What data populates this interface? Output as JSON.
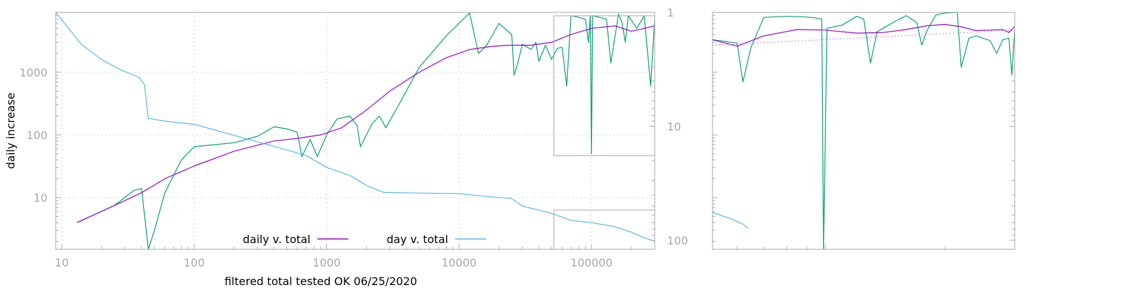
{
  "chart_data": [
    {
      "type": "line",
      "xlabel": "filtered total tested OK 06/25/2020",
      "ylabel": "daily increase",
      "x_scale": "log",
      "y_scale": "log",
      "y2_scale": "log",
      "y2_reversed": true,
      "xlim": [
        9,
        300000
      ],
      "ylim": [
        1.5,
        9000
      ],
      "y2lim": [
        1,
        120
      ],
      "grid": true,
      "legend_position": "bottom-center",
      "x_ticks": [
        "10",
        "100",
        "1000",
        "10000",
        "100000"
      ],
      "y_ticks": [
        "10",
        "100",
        "1000"
      ],
      "y2_ticks": [
        "1",
        "10",
        "100"
      ],
      "series": [
        {
          "name": "daily v. total",
          "axis": "y",
          "color": "#9400d3",
          "points": [
            [
              13,
              4
            ],
            [
              25,
              7.5
            ],
            [
              40,
              12
            ],
            [
              60,
              20
            ],
            [
              100,
              32
            ],
            [
              200,
              55
            ],
            [
              400,
              80
            ],
            [
              600,
              88
            ],
            [
              900,
              100
            ],
            [
              1300,
              130
            ],
            [
              2000,
              250
            ],
            [
              3000,
              500
            ],
            [
              5000,
              1000
            ],
            [
              8000,
              1700
            ],
            [
              12000,
              2300
            ],
            [
              18000,
              2600
            ],
            [
              25000,
              2700
            ],
            [
              35000,
              2700
            ],
            [
              50000,
              3000
            ],
            [
              70000,
              4000
            ],
            [
              100000,
              5000
            ],
            [
              150000,
              5500
            ],
            [
              200000,
              4500
            ],
            [
              250000,
              5000
            ],
            [
              300000,
              5500
            ]
          ]
        },
        {
          "name": "day v. total",
          "axis": "y2",
          "color": "#56b4e9",
          "points": [
            [
              9,
              1
            ],
            [
              14,
              1.9
            ],
            [
              20,
              2.6
            ],
            [
              28,
              3.2
            ],
            [
              38,
              3.7
            ],
            [
              42,
              4.3
            ],
            [
              45,
              8.5
            ],
            [
              60,
              9
            ],
            [
              100,
              9.6
            ],
            [
              200,
              12
            ],
            [
              400,
              15
            ],
            [
              700,
              18
            ],
            [
              1000,
              23
            ],
            [
              1500,
              27
            ],
            [
              2000,
              33
            ],
            [
              2700,
              38
            ],
            [
              5000,
              38.5
            ],
            [
              10000,
              39
            ],
            [
              15000,
              41
            ],
            [
              25000,
              43
            ],
            [
              30000,
              50
            ],
            [
              50000,
              58
            ],
            [
              70000,
              67
            ],
            [
              100000,
              70
            ],
            [
              150000,
              76
            ],
            [
              200000,
              85
            ],
            [
              250000,
              95
            ],
            [
              300000,
              102
            ]
          ]
        },
        {
          "name": "",
          "axis": "y",
          "color": "#009e73",
          "points": [
            [
              13,
              4
            ],
            [
              25,
              7.5
            ],
            [
              35,
              13
            ],
            [
              40,
              14
            ],
            [
              45,
              1.5
            ],
            [
              50,
              3
            ],
            [
              60,
              12
            ],
            [
              80,
              40
            ],
            [
              100,
              65
            ],
            [
              200,
              75
            ],
            [
              300,
              95
            ],
            [
              400,
              135
            ],
            [
              500,
              125
            ],
            [
              600,
              110
            ],
            [
              650,
              45
            ],
            [
              750,
              85
            ],
            [
              850,
              45
            ],
            [
              1000,
              100
            ],
            [
              1200,
              180
            ],
            [
              1500,
              200
            ],
            [
              1700,
              140
            ],
            [
              1800,
              65
            ],
            [
              2200,
              150
            ],
            [
              2500,
              200
            ],
            [
              2800,
              130
            ],
            [
              3500,
              300
            ],
            [
              5000,
              1200
            ],
            [
              8000,
              3800
            ],
            [
              12000,
              8800
            ],
            [
              14000,
              2000
            ],
            [
              16000,
              2600
            ],
            [
              20000,
              6000
            ],
            [
              25000,
              4000
            ],
            [
              26000,
              900
            ],
            [
              28000,
              1500
            ],
            [
              30000,
              2800
            ],
            [
              35000,
              2300
            ],
            [
              38000,
              3000
            ],
            [
              40000,
              1500
            ],
            [
              45000,
              2700
            ],
            [
              50000,
              1600
            ],
            [
              55000,
              2400
            ],
            [
              60000,
              2500
            ],
            [
              65000,
              600
            ],
            [
              70000,
              8000
            ],
            [
              80000,
              7500
            ],
            [
              90000,
              7000
            ],
            [
              95000,
              3000
            ],
            [
              98000,
              8000
            ],
            [
              100000,
              50
            ],
            [
              102000,
              8000
            ],
            [
              130000,
              7000
            ],
            [
              140000,
              1400
            ],
            [
              160000,
              8500
            ],
            [
              170000,
              6200
            ],
            [
              180000,
              3000
            ],
            [
              190000,
              8000
            ],
            [
              220000,
              5000
            ],
            [
              250000,
              8000
            ],
            [
              280000,
              600
            ],
            [
              300000,
              7000
            ]
          ]
        }
      ]
    },
    {
      "type": "line",
      "title": "",
      "x_scale": "log",
      "y_scale": "log",
      "y2_scale": "log",
      "y2_reversed": true,
      "xlim": [
        52000,
        300000
      ],
      "ylim": [
        1.5,
        9000
      ],
      "y2lim": [
        1,
        120
      ],
      "series": [
        {
          "name": "daily v. total",
          "axis": "y",
          "color": "#9400d3",
          "points": [
            [
              52000,
              3300
            ],
            [
              60000,
              2600
            ],
            [
              70000,
              3800
            ],
            [
              85000,
              4800
            ],
            [
              100000,
              4700
            ],
            [
              120000,
              4200
            ],
            [
              140000,
              4300
            ],
            [
              160000,
              4800
            ],
            [
              180000,
              5500
            ],
            [
              200000,
              5800
            ],
            [
              220000,
              5300
            ],
            [
              240000,
              4600
            ],
            [
              260000,
              4700
            ],
            [
              280000,
              4800
            ],
            [
              290000,
              4300
            ],
            [
              300000,
              5400
            ]
          ]
        },
        {
          "name": "day v. total",
          "axis": "y2",
          "color": "#56b4e9",
          "points": [
            [
              52000,
              57
            ],
            [
              58000,
              65
            ],
            [
              62000,
              72
            ],
            [
              64000,
              79
            ]
          ]
        },
        {
          "name": "",
          "axis": "y",
          "color": "#009e73",
          "points": [
            [
              52000,
              3300
            ],
            [
              56000,
              3100
            ],
            [
              60000,
              2900
            ],
            [
              62000,
              700
            ],
            [
              65000,
              2500
            ],
            [
              70000,
              7500
            ],
            [
              80000,
              7800
            ],
            [
              90000,
              7600
            ],
            [
              95000,
              7300
            ],
            [
              98000,
              7000
            ],
            [
              99000,
              1.5
            ],
            [
              101000,
              5000
            ],
            [
              105000,
              5300
            ],
            [
              110000,
              5600
            ],
            [
              120000,
              7800
            ],
            [
              125000,
              7000
            ],
            [
              130000,
              1400
            ],
            [
              135000,
              4400
            ],
            [
              150000,
              6500
            ],
            [
              160000,
              8000
            ],
            [
              170000,
              6200
            ],
            [
              175000,
              2700
            ],
            [
              180000,
              4500
            ],
            [
              190000,
              8200
            ],
            [
              200000,
              8800
            ],
            [
              215000,
              9000
            ],
            [
              220000,
              1200
            ],
            [
              230000,
              3500
            ],
            [
              240000,
              3800
            ],
            [
              260000,
              3200
            ],
            [
              270000,
              2000
            ],
            [
              280000,
              3300
            ],
            [
              290000,
              3500
            ],
            [
              295000,
              900
            ],
            [
              300000,
              4800
            ]
          ]
        },
        {
          "name": "",
          "axis": "y",
          "color": "#9400d3",
          "dashed": true,
          "points": [
            [
              52000,
              2700
            ],
            [
              300000,
              4700
            ]
          ]
        }
      ]
    }
  ]
}
